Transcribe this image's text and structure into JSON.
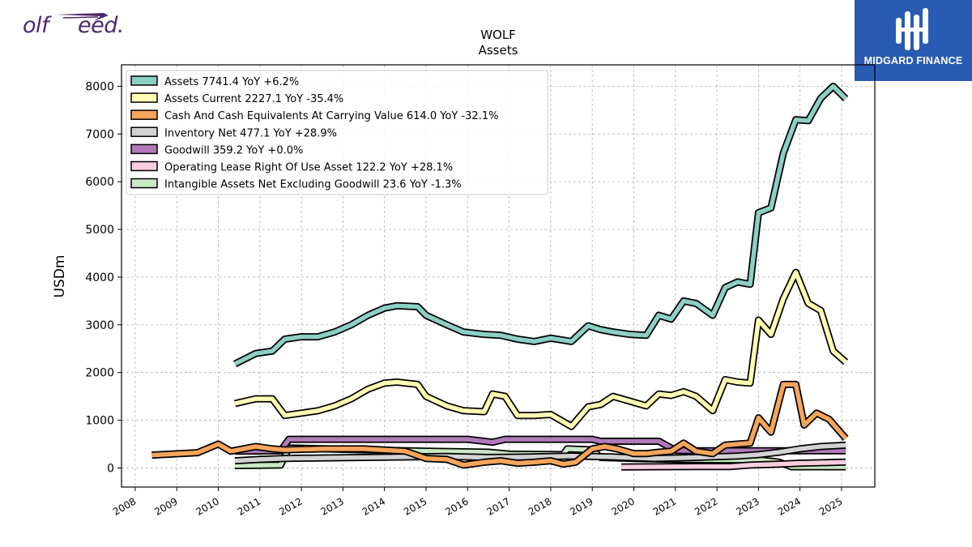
{
  "branding": {
    "left_logo": {
      "text_a": "olf",
      "text_b": "eed.",
      "color": "#4a2a6e"
    },
    "right_logo": {
      "name": "MIDGARD FINANCE",
      "bg": "#2a5bb3"
    }
  },
  "chart_data": {
    "type": "line",
    "title": "WOLF",
    "subtitle": "Assets",
    "xlabel": "",
    "ylabel": "USDm",
    "xlim": [
      2007.67,
      2025.8
    ],
    "ylim": [
      -400,
      8450
    ],
    "yticks": [
      0,
      1000,
      2000,
      3000,
      4000,
      5000,
      6000,
      7000,
      8000
    ],
    "xticks": [
      "2008",
      "2009",
      "2010",
      "2011",
      "2012",
      "2013",
      "2014",
      "2015",
      "2016",
      "2017",
      "2018",
      "2019",
      "2020",
      "2021",
      "2022",
      "2023",
      "2024",
      "2025"
    ],
    "grid": true,
    "legend_position": "top-left",
    "series": [
      {
        "name": "Assets",
        "legend": "Assets  7741.4 YoY +6.2%",
        "color": "#8ccfc3",
        "x": [
          2010.4,
          2010.9,
          2011.3,
          2011.6,
          2012.0,
          2012.4,
          2012.8,
          2013.2,
          2013.6,
          2014.0,
          2014.3,
          2014.8,
          2015.0,
          2015.5,
          2015.9,
          2016.4,
          2016.8,
          2017.2,
          2017.6,
          2018.0,
          2018.5,
          2018.9,
          2019.2,
          2019.5,
          2019.9,
          2020.3,
          2020.6,
          2020.9,
          2021.2,
          2021.5,
          2021.9,
          2022.2,
          2022.5,
          2022.8,
          2023.0,
          2023.3,
          2023.6,
          2023.9,
          2024.2,
          2024.5,
          2024.8,
          2025.1
        ],
        "values": [
          2180,
          2400,
          2450,
          2700,
          2750,
          2750,
          2850,
          3000,
          3200,
          3350,
          3400,
          3380,
          3200,
          3000,
          2850,
          2800,
          2780,
          2700,
          2650,
          2720,
          2650,
          2980,
          2900,
          2850,
          2800,
          2780,
          3200,
          3120,
          3500,
          3450,
          3200,
          3780,
          3900,
          3850,
          5350,
          5450,
          6600,
          7300,
          7280,
          7750,
          8000,
          7740
        ]
      },
      {
        "name": "Assets Current",
        "legend": "Assets Current  2227.1 YoY -35.4%",
        "color": "#ffffb3",
        "x": [
          2010.4,
          2010.9,
          2011.3,
          2011.6,
          2012.0,
          2012.4,
          2012.8,
          2013.2,
          2013.6,
          2014.0,
          2014.3,
          2014.8,
          2015.0,
          2015.5,
          2015.9,
          2016.4,
          2016.6,
          2016.9,
          2017.2,
          2017.6,
          2018.0,
          2018.5,
          2018.9,
          2019.2,
          2019.5,
          2019.9,
          2020.3,
          2020.6,
          2020.9,
          2021.2,
          2021.5,
          2021.9,
          2022.2,
          2022.5,
          2022.8,
          2023.0,
          2023.3,
          2023.6,
          2023.9,
          2024.2,
          2024.5,
          2024.8,
          2025.1
        ],
        "values": [
          1350,
          1450,
          1450,
          1100,
          1150,
          1200,
          1300,
          1450,
          1650,
          1780,
          1800,
          1750,
          1500,
          1300,
          1200,
          1180,
          1550,
          1500,
          1100,
          1100,
          1120,
          870,
          1280,
          1330,
          1500,
          1400,
          1300,
          1550,
          1520,
          1600,
          1500,
          1200,
          1850,
          1800,
          1780,
          3100,
          2800,
          3550,
          4100,
          3450,
          3300,
          2450,
          2220
        ]
      },
      {
        "name": "Cash And Cash Equivalents At Carrying Value",
        "legend": "Cash And Cash Equivalents At Carrying Value  614.0 YoY -32.1%",
        "color": "#f5a55c",
        "x": [
          2008.4,
          2009.5,
          2010.0,
          2010.3,
          2010.9,
          2011.3,
          2011.6,
          2012.5,
          2013.5,
          2014.5,
          2015.0,
          2015.5,
          2015.9,
          2016.4,
          2016.8,
          2017.2,
          2017.6,
          2018.0,
          2018.3,
          2018.6,
          2019.0,
          2019.3,
          2019.6,
          2020.0,
          2020.3,
          2020.6,
          2020.9,
          2021.2,
          2021.5,
          2021.9,
          2022.2,
          2022.5,
          2022.8,
          2023.0,
          2023.3,
          2023.6,
          2023.9,
          2024.1,
          2024.4,
          2024.7,
          2025.1
        ],
        "values": [
          270,
          320,
          500,
          350,
          450,
          400,
          380,
          400,
          400,
          350,
          200,
          180,
          60,
          120,
          150,
          100,
          120,
          150,
          80,
          120,
          400,
          450,
          400,
          300,
          300,
          330,
          350,
          520,
          350,
          300,
          480,
          500,
          520,
          1050,
          750,
          1750,
          1750,
          900,
          1150,
          1020,
          620
        ]
      },
      {
        "name": "Inventory Net",
        "legend": "Inventory Net  477.1 YoY +28.9%",
        "color": "#d3d3d3",
        "x": [
          2010.4,
          2011.0,
          2011.6,
          2012.5,
          2013.5,
          2014.5,
          2015.5,
          2016.5,
          2017.5,
          2018.5,
          2019.5,
          2020.5,
          2021.5,
          2022.5,
          2023.0,
          2023.5,
          2024.0,
          2024.5,
          2025.1
        ],
        "values": [
          150,
          180,
          200,
          210,
          220,
          230,
          240,
          220,
          230,
          250,
          230,
          200,
          220,
          250,
          280,
          330,
          400,
          450,
          477
        ]
      },
      {
        "name": "Goodwill",
        "legend": "Goodwill  359.2 YoY +0.0%",
        "color": "#b07ab8",
        "x": [
          2010.4,
          2011.5,
          2011.7,
          2014.0,
          2016.0,
          2016.6,
          2016.9,
          2019.0,
          2019.2,
          2020.6,
          2021.0,
          2021.5,
          2025.1
        ],
        "values": [
          350,
          360,
          600,
          600,
          600,
          540,
          600,
          600,
          560,
          560,
          370,
          360,
          359
        ]
      },
      {
        "name": "Operating Lease Right Of Use Asset",
        "legend": "Operating Lease Right Of Use Asset  122.2 YoY +28.1%",
        "color": "#f9cde0",
        "x": [
          2019.7,
          2020.5,
          2021.5,
          2022.3,
          2022.8,
          2023.5,
          2024.0,
          2024.5,
          2025.1
        ],
        "values": [
          20,
          25,
          30,
          30,
          60,
          80,
          100,
          110,
          122
        ]
      },
      {
        "name": "Intangible Assets Net Excluding Goodwill",
        "legend": "Intangible Assets Net Excluding Goodwill  23.6 YoY -1.3%",
        "color": "#c9e8c4",
        "x": [
          2010.4,
          2011.5,
          2011.7,
          2013.5,
          2015.0,
          2016.5,
          2017.0,
          2018.3,
          2018.4,
          2019.0,
          2019.2,
          2020.0,
          2021.0,
          2022.0,
          2023.0,
          2023.5,
          2023.8,
          2024.5,
          2025.1
        ],
        "values": [
          50,
          60,
          420,
          380,
          350,
          330,
          290,
          280,
          400,
          380,
          220,
          200,
          180,
          170,
          170,
          120,
          24,
          24,
          24
        ]
      }
    ]
  }
}
